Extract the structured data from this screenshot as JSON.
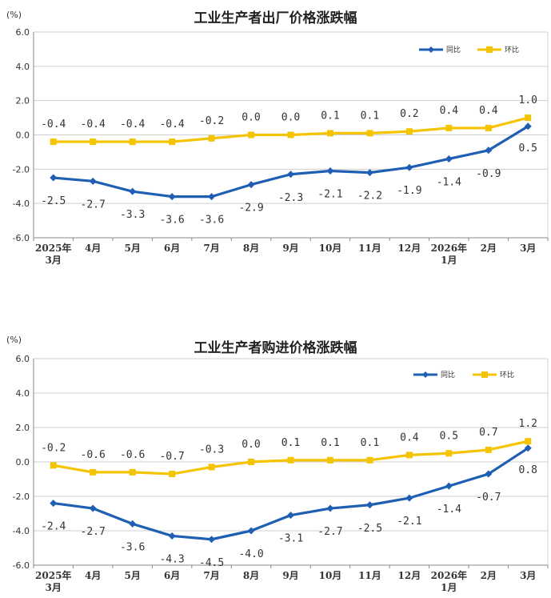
{
  "colors": {
    "yoy": "#1f5fb3",
    "mom": "#f5c400",
    "grid": "#cfcfcf",
    "axis": "#888888"
  },
  "chart_data": [
    {
      "type": "line",
      "title": "工业生产者出厂价格涨跌幅",
      "unit": "(%)",
      "categories": [
        [
          "2025年",
          "3月"
        ],
        [
          "4月"
        ],
        [
          "5月"
        ],
        [
          "6月"
        ],
        [
          "7月"
        ],
        [
          "8月"
        ],
        [
          "9月"
        ],
        [
          "10月"
        ],
        [
          "11月"
        ],
        [
          "12月"
        ],
        [
          "2026年",
          "1月"
        ],
        [
          "2月"
        ],
        [
          "3月"
        ]
      ],
      "series": [
        {
          "name": "同比",
          "color": "#1f5fb3",
          "values": [
            -2.5,
            -2.7,
            -3.3,
            -3.6,
            -3.6,
            -2.9,
            -2.3,
            -2.1,
            -2.2,
            -1.9,
            -1.4,
            -0.9,
            0.5
          ],
          "labels": [
            "-2.5",
            "-2.7",
            "-3.3",
            "-3.6",
            "-3.6",
            "-2.9",
            "-2.3",
            "-2.1",
            "-2.2",
            "-1.9",
            "-1.4",
            "-0.9",
            "0.5"
          ]
        },
        {
          "name": "环比",
          "color": "#f5c400",
          "values": [
            -0.4,
            -0.4,
            -0.4,
            -0.4,
            -0.2,
            0.0,
            0.0,
            0.1,
            0.1,
            0.2,
            0.4,
            0.4,
            1.0
          ],
          "labels": [
            "-0.4",
            "-0.4",
            "-0.4",
            "-0.4",
            "-0.2",
            "0.0",
            "0.0",
            "0.1",
            "0.1",
            "0.2",
            "0.4",
            "0.4",
            "1.0"
          ]
        }
      ],
      "ylim": [
        -6.0,
        6.0
      ],
      "yticks": [
        "6.0",
        "4.0",
        "2.0",
        "0.0",
        "-2.0",
        "-4.0",
        "-6.0"
      ],
      "grid": "horizontal",
      "legend_position": "top-right"
    },
    {
      "type": "line",
      "title": "工业生产者购进价格涨跌幅",
      "unit": "(%)",
      "categories": [
        [
          "2025年",
          "3月"
        ],
        [
          "4月"
        ],
        [
          "5月"
        ],
        [
          "6月"
        ],
        [
          "7月"
        ],
        [
          "8月"
        ],
        [
          "9月"
        ],
        [
          "10月"
        ],
        [
          "11月"
        ],
        [
          "12月"
        ],
        [
          "2026年",
          "1月"
        ],
        [
          "2月"
        ],
        [
          "3月"
        ]
      ],
      "series": [
        {
          "name": "同比",
          "color": "#1f5fb3",
          "values": [
            -2.4,
            -2.7,
            -3.6,
            -4.3,
            -4.5,
            -4.0,
            -3.1,
            -2.7,
            -2.5,
            -2.1,
            -1.4,
            -0.7,
            0.8
          ],
          "labels": [
            "-2.4",
            "-2.7",
            "-3.6",
            "-4.3",
            "-4.5",
            "-4.0",
            "-3.1",
            "-2.7",
            "-2.5",
            "-2.1",
            "-1.4",
            "-0.7",
            "0.8"
          ]
        },
        {
          "name": "环比",
          "color": "#f5c400",
          "values": [
            -0.2,
            -0.6,
            -0.6,
            -0.7,
            -0.3,
            0.0,
            0.1,
            0.1,
            0.1,
            0.4,
            0.5,
            0.7,
            1.2
          ],
          "labels": [
            "-0.2",
            "-0.6",
            "-0.6",
            "-0.7",
            "-0.3",
            "0.0",
            "0.1",
            "0.1",
            "0.1",
            "0.4",
            "0.5",
            "0.7",
            "1.2"
          ]
        }
      ],
      "ylim": [
        -6.0,
        6.0
      ],
      "yticks": [
        "6.0",
        "4.0",
        "2.0",
        "0.0",
        "-2.0",
        "-4.0",
        "-6.0"
      ],
      "grid": "horizontal",
      "legend_position": "top-right"
    }
  ]
}
